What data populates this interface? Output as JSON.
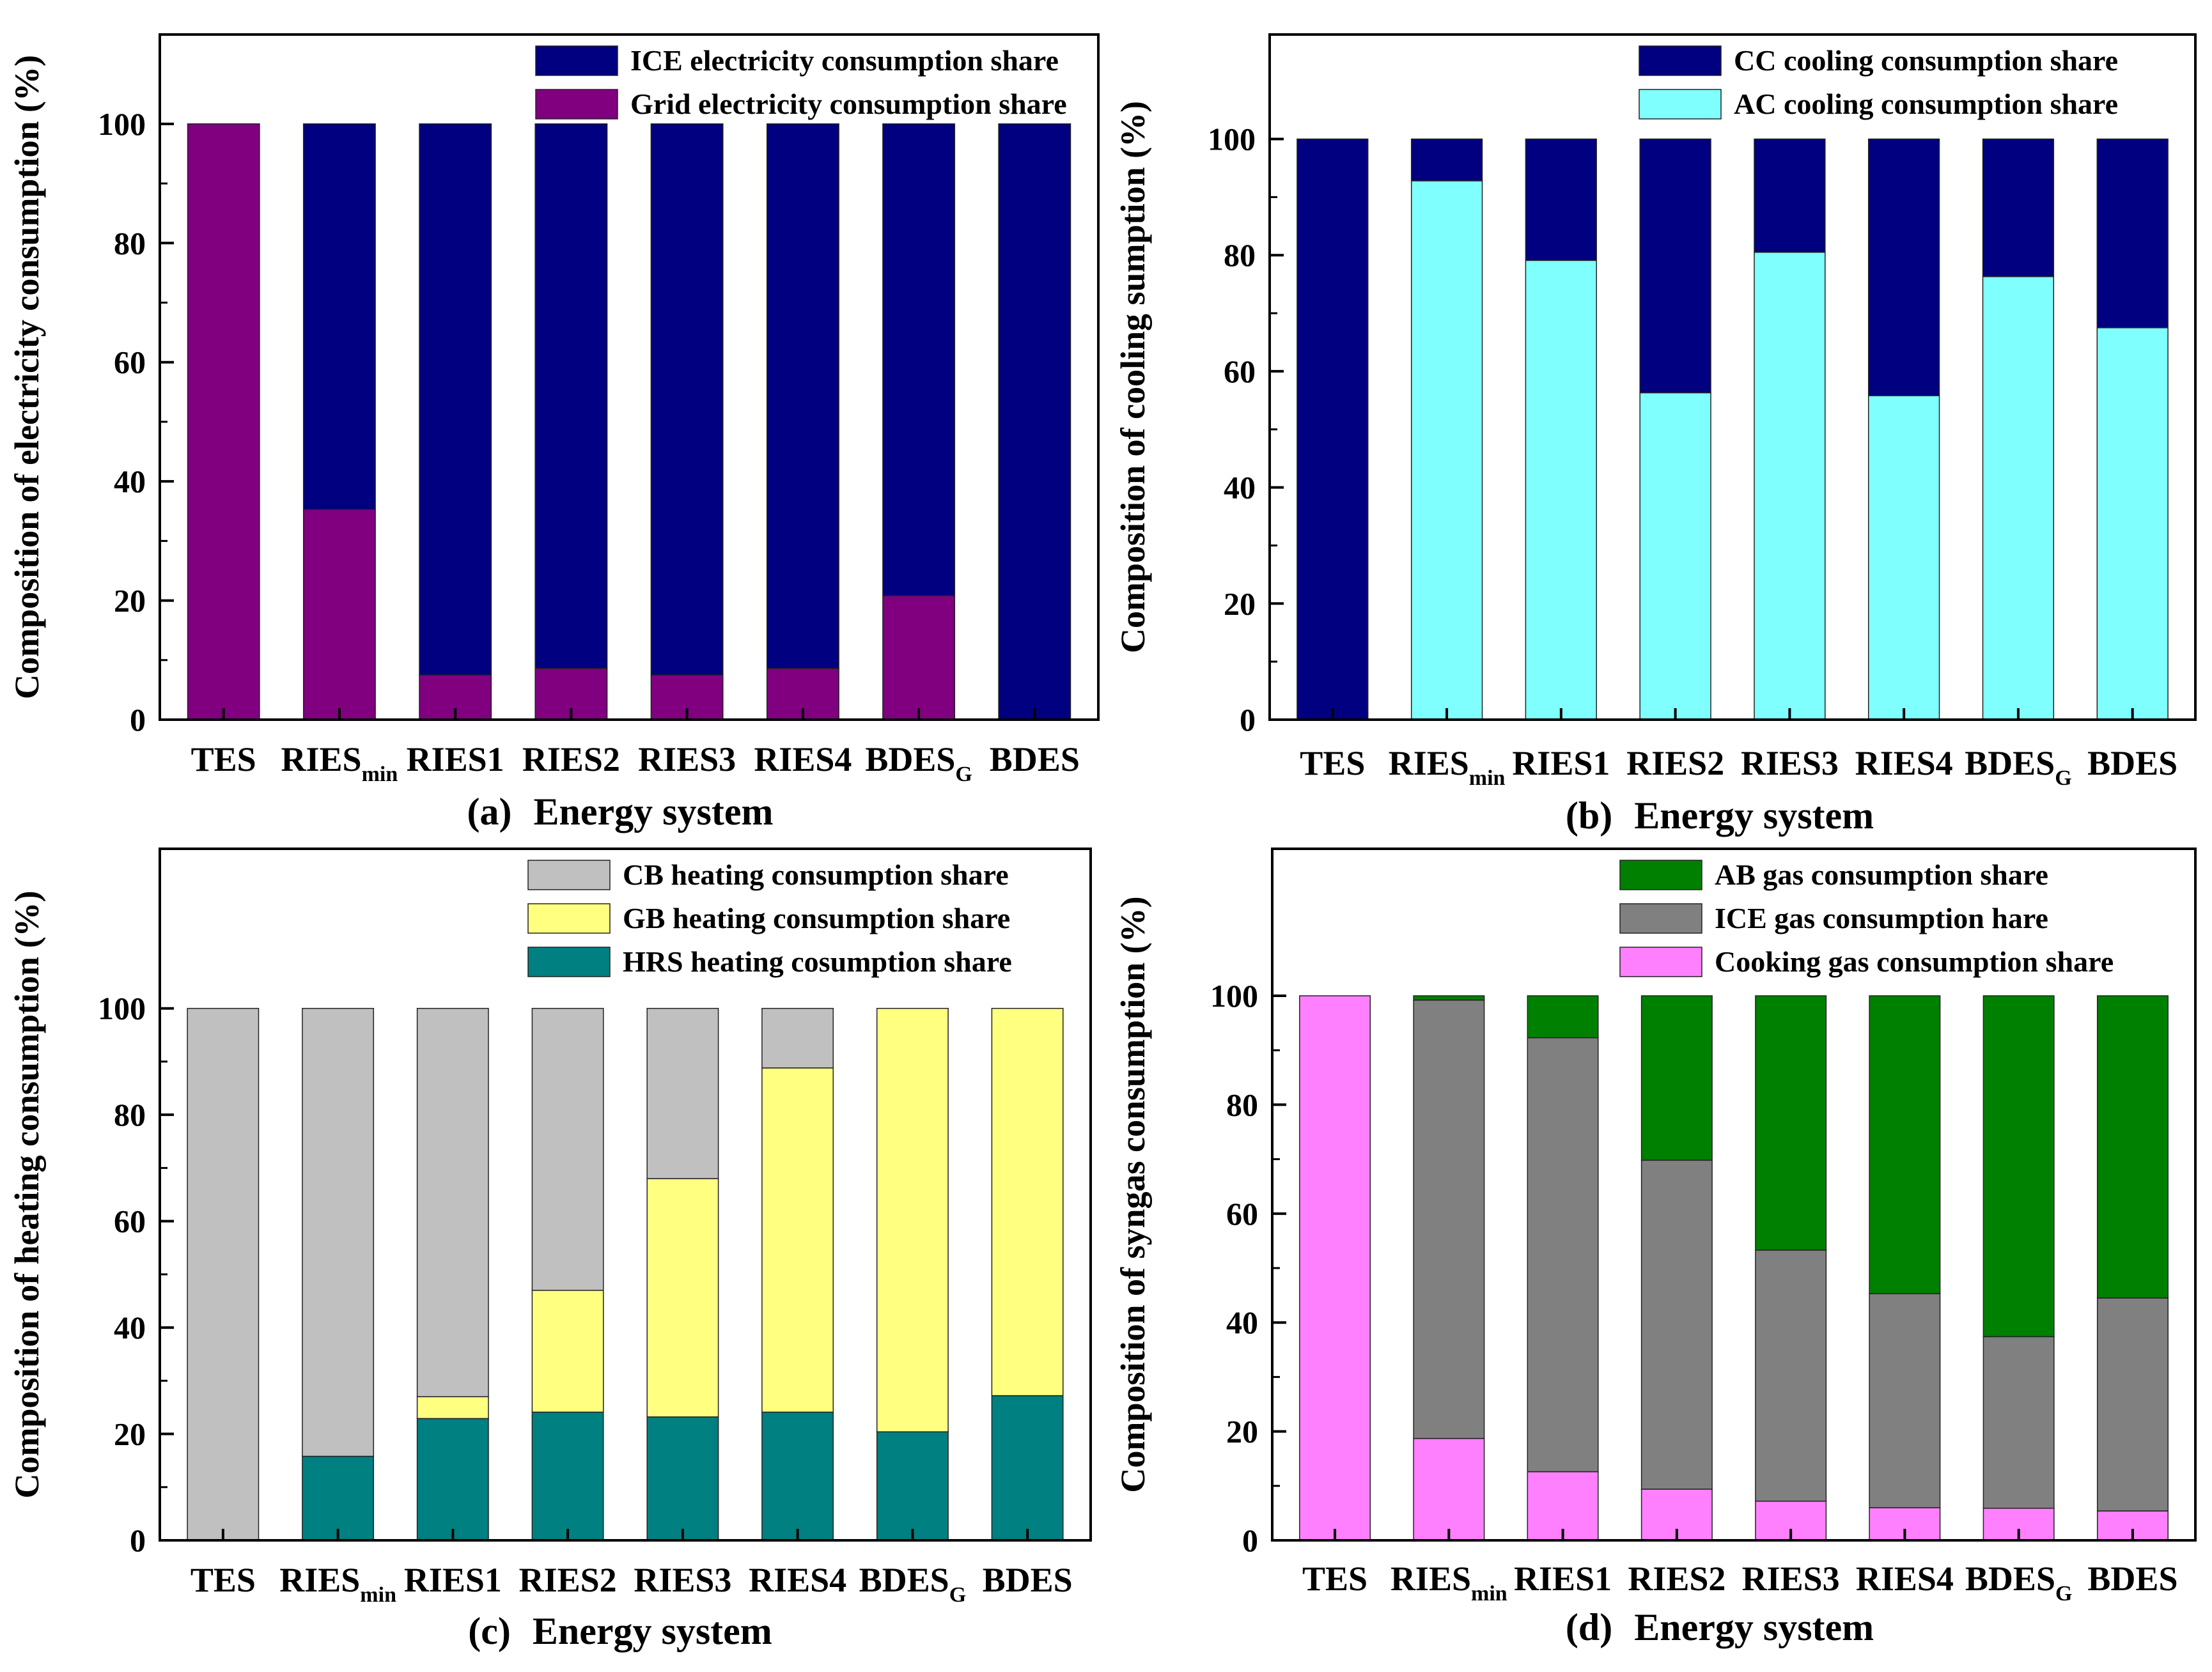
{
  "figure": {
    "categories": [
      "TES",
      "RIES",
      "RIES1",
      "RIES2",
      "RIES3",
      "RIES4",
      "BDES",
      "BDES"
    ],
    "category_subscripts": [
      "",
      "min",
      "",
      "",
      "",
      "",
      "G",
      ""
    ]
  },
  "chart_data": [
    {
      "type": "bar",
      "stacked": true,
      "panel_letter": "(a)",
      "xlabel": "Energy system",
      "ylabel": "Composition of electricity consumption (%)",
      "ylim": [
        0,
        115
      ],
      "yticks": [
        0,
        20,
        40,
        60,
        80,
        100
      ],
      "legend_position": "top-right",
      "series": [
        {
          "name": "Grid electricity consumption share",
          "color": "#800080",
          "values": [
            100,
            35.3,
            7.5,
            8.6,
            7.5,
            8.6,
            20.8,
            0
          ]
        },
        {
          "name": "ICE electricity consumption share",
          "color": "#000080",
          "values": [
            0,
            64.7,
            92.5,
            91.4,
            92.5,
            91.4,
            79.2,
            100
          ]
        }
      ],
      "legend_order": [
        1,
        0
      ]
    },
    {
      "type": "bar",
      "stacked": true,
      "panel_letter": "(b)",
      "xlabel": "Energy system",
      "ylabel": "Composition of cooling sumption (%)",
      "ylim": [
        0,
        118
      ],
      "yticks": [
        0,
        20,
        40,
        60,
        80,
        100
      ],
      "legend_position": "top-right",
      "series": [
        {
          "name": "AC cooling  consumption share",
          "color": "#80FFFF",
          "values": [
            0,
            92.8,
            79.1,
            56.3,
            80.5,
            55.8,
            76.3,
            67.5
          ]
        },
        {
          "name": "CC cooling consumption share",
          "color": "#000080",
          "values": [
            100,
            7.2,
            20.9,
            43.7,
            19.5,
            44.2,
            23.7,
            32.5
          ]
        }
      ],
      "legend_order": [
        1,
        0
      ]
    },
    {
      "type": "bar",
      "stacked": true,
      "panel_letter": "(c)",
      "xlabel": "Energy system",
      "ylabel": "Composition of heating consumption (%)",
      "ylim": [
        0,
        130
      ],
      "yticks": [
        0,
        20,
        40,
        60,
        80,
        100
      ],
      "legend_position": "top-right",
      "series": [
        {
          "name": "HRS heating cosumption share",
          "color": "#008080",
          "values": [
            0,
            15.8,
            22.9,
            24.1,
            23.2,
            24.1,
            20.4,
            27.2
          ]
        },
        {
          "name": "GB heating consumption share",
          "color": "#FFFF80",
          "values": [
            0,
            0,
            4.1,
            22.9,
            44.8,
            64.7,
            79.6,
            72.8
          ]
        },
        {
          "name": "CB heating consumption share",
          "color": "#C0C0C0",
          "values": [
            100,
            84.2,
            73,
            53,
            32,
            11.2,
            0,
            0
          ]
        }
      ],
      "legend_order": [
        2,
        1,
        0
      ]
    },
    {
      "type": "bar",
      "stacked": true,
      "panel_letter": "(d)",
      "xlabel": "Energy system",
      "ylabel": "Composition of syngas consumption (%)",
      "ylim": [
        0,
        127
      ],
      "yticks": [
        0,
        20,
        40,
        60,
        80,
        100
      ],
      "legend_position": "top-right",
      "series": [
        {
          "name": "Cooking gas consumption share",
          "color": "#FF80FF",
          "values": [
            100,
            18.7,
            12.6,
            9.4,
            7.2,
            6.0,
            5.9,
            5.4
          ]
        },
        {
          "name": "ICE gas consumption hare",
          "color": "#808080",
          "values": [
            0,
            80.5,
            79.7,
            60.4,
            46.1,
            39.3,
            31.5,
            39.1
          ]
        },
        {
          "name": "AB gas consumption share",
          "color": "#008000",
          "values": [
            0,
            0.8,
            7.7,
            30.2,
            46.7,
            54.7,
            62.6,
            55.5
          ]
        }
      ],
      "legend_order": [
        2,
        1,
        0
      ]
    }
  ]
}
